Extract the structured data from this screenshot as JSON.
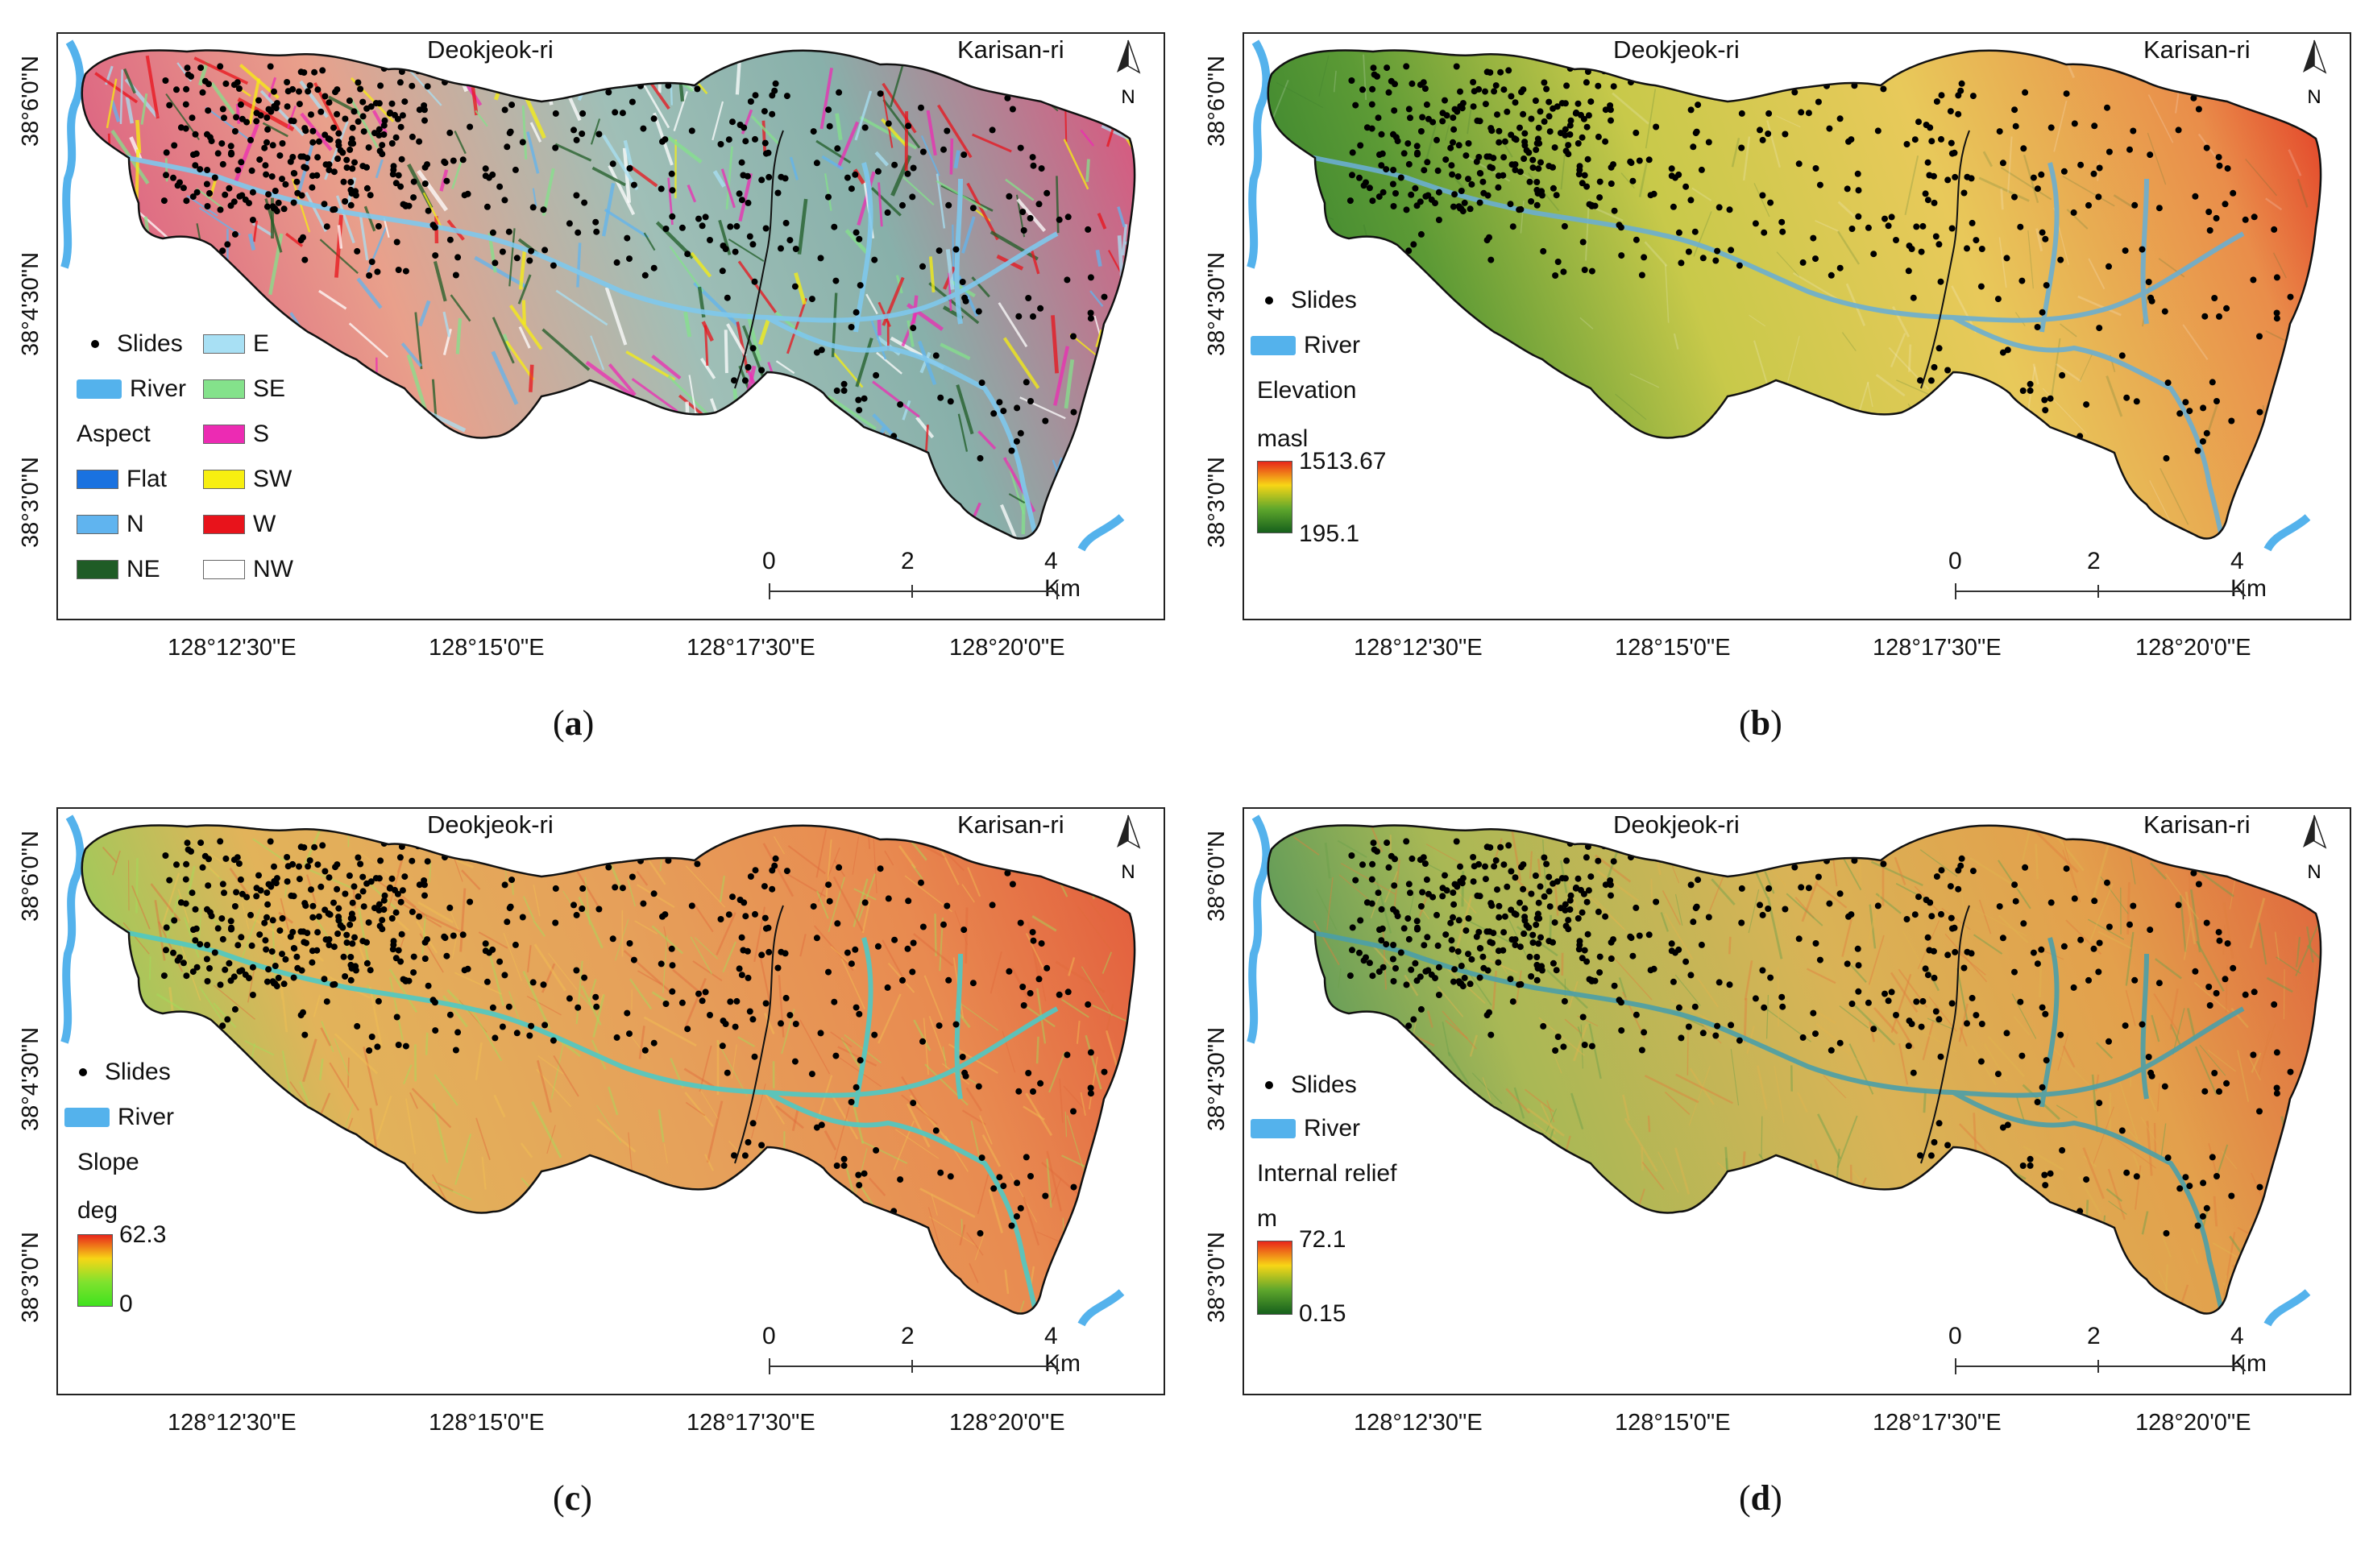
{
  "panels": [
    {
      "id": "a",
      "caption_letter": "a",
      "place_left": "Deokjeok-ri",
      "place_right": "Karisan-ri",
      "legend_title": "Aspect",
      "legend_slides": "Slides",
      "legend_river": "River",
      "aspect_classes": [
        {
          "label": "Flat",
          "color": "#1a72e0"
        },
        {
          "label": "N",
          "color": "#60b4ef"
        },
        {
          "label": "NE",
          "color": "#1f5c26"
        },
        {
          "label": "E",
          "color": "#a8e0f4"
        },
        {
          "label": "SE",
          "color": "#84e28b"
        },
        {
          "label": "S",
          "color": "#ec2bb3"
        },
        {
          "label": "SW",
          "color": "#f7ef10"
        },
        {
          "label": "W",
          "color": "#e8131b"
        },
        {
          "label": "NW",
          "color": "#ffffff"
        }
      ]
    },
    {
      "id": "b",
      "caption_letter": "b",
      "place_left": "Deokjeok-ri",
      "place_right": "Karisan-ri",
      "legend_slides": "Slides",
      "legend_river": "River",
      "legend_title": "Elevation",
      "unit": "masl",
      "max": "1513.67",
      "min": "195.1",
      "ramp_colors": [
        "#e8261b",
        "#f7d616",
        "#5fa72c",
        "#16601c"
      ]
    },
    {
      "id": "c",
      "caption_letter": "c",
      "place_left": "Deokjeok-ri",
      "place_right": "Karisan-ri",
      "legend_slides": "Slides",
      "legend_river": "River",
      "legend_title": "Slope",
      "unit": "deg",
      "max": "62.3",
      "min": "0",
      "ramp_colors": [
        "#e8261b",
        "#f7d616",
        "#7fe22e",
        "#3fe21e"
      ]
    },
    {
      "id": "d",
      "caption_letter": "d",
      "place_left": "Deokjeok-ri",
      "place_right": "Karisan-ri",
      "legend_slides": "Slides",
      "legend_river": "River",
      "legend_title": "Internal relief",
      "unit": "m",
      "max": "72.1",
      "min": "0.15",
      "ramp_colors": [
        "#e8261b",
        "#f7d616",
        "#5fa72c",
        "#16601c"
      ]
    }
  ],
  "lat_labels": [
    "38°6'0\"N",
    "38°4'30\"N",
    "38°3'0\"N"
  ],
  "lon_labels": [
    "128°12'30\"E",
    "128°15'0\"E",
    "128°17'30\"E",
    "128°20'0\"E"
  ],
  "scalebar": {
    "ticks": [
      "0",
      "2"
    ],
    "end_label": "4 Km"
  },
  "north_label": "N",
  "colors": {
    "river": "#54b2ec",
    "slides": "#000000",
    "boundary": "#111111"
  }
}
